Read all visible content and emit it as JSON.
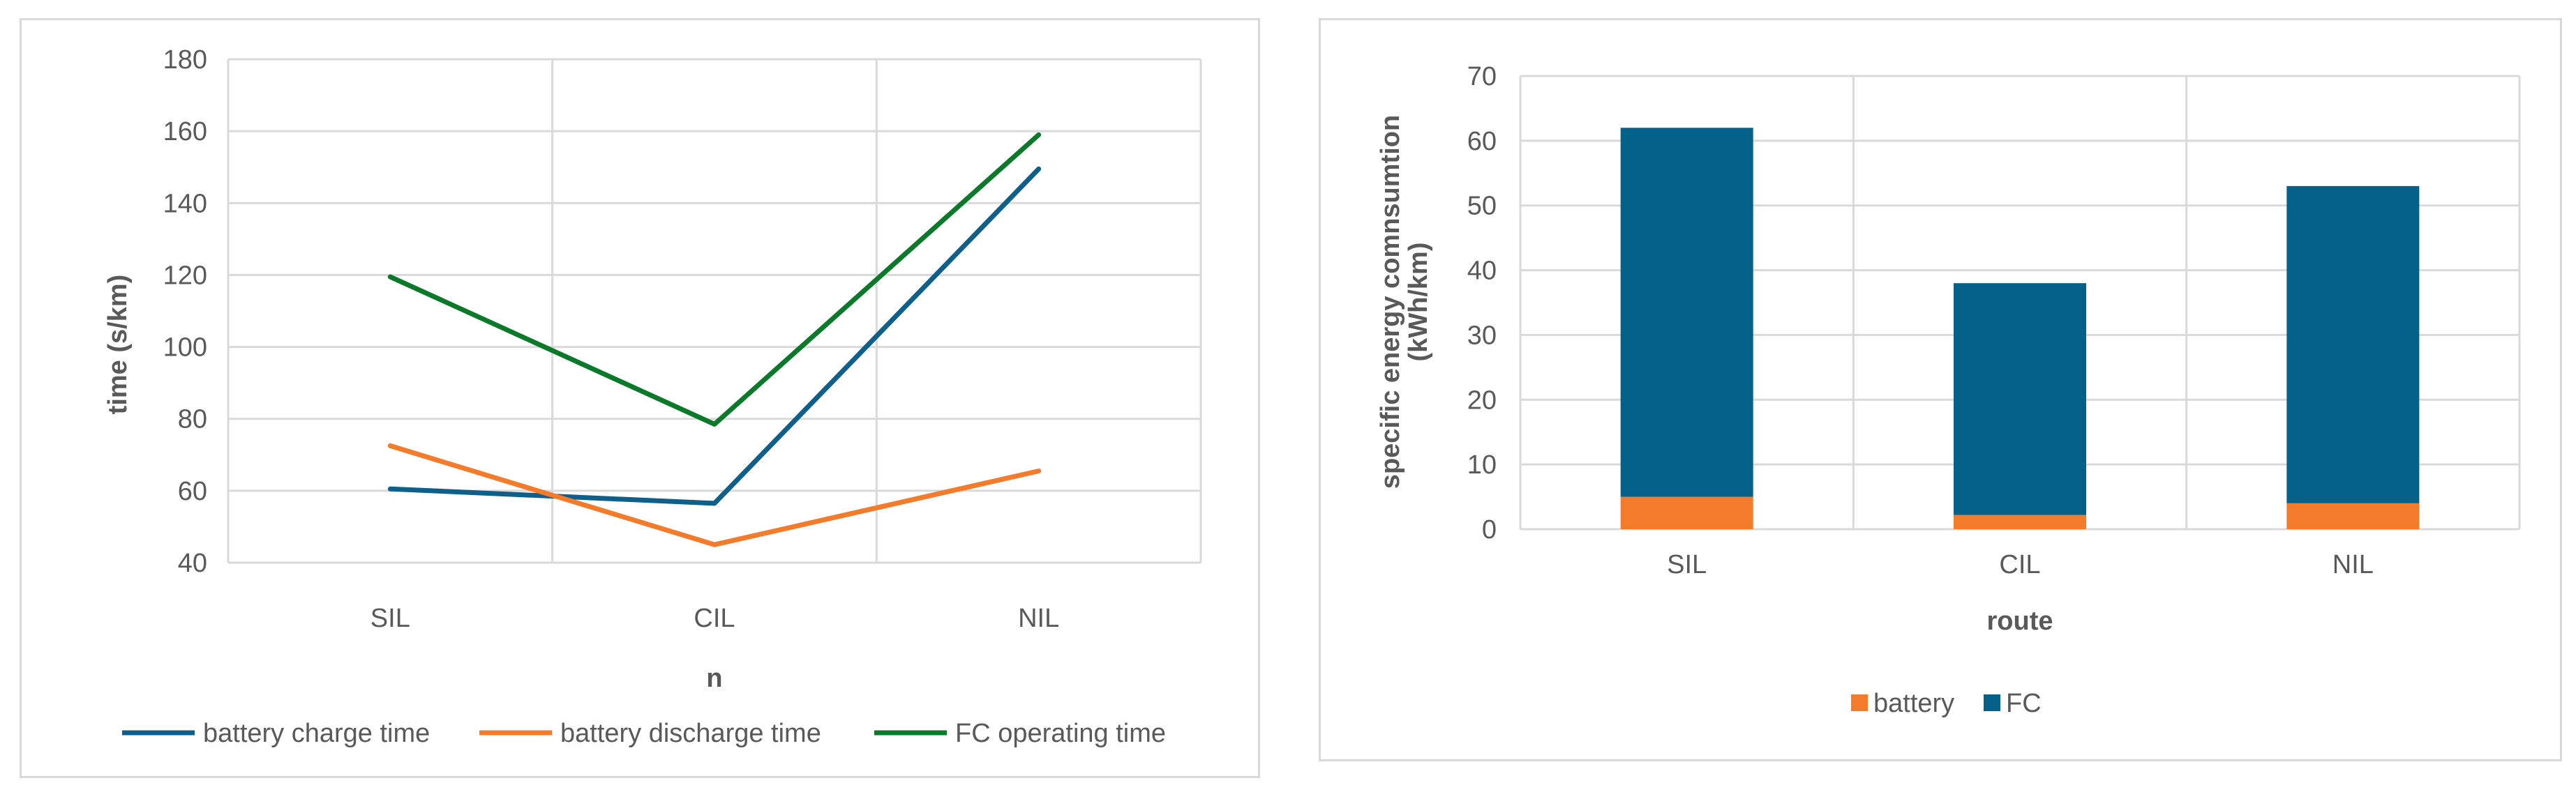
{
  "chart_data": [
    {
      "type": "line",
      "categories": [
        "SIL",
        "CIL",
        "NIL"
      ],
      "series": [
        {
          "name": "battery charge time",
          "color": "#0e5f8a",
          "values": [
            60.5,
            56.5,
            149.5
          ]
        },
        {
          "name": "battery discharge time",
          "color": "#f47b2a",
          "values": [
            72.5,
            45,
            65.5
          ]
        },
        {
          "name": "FC operating time",
          "color": "#0a7a2a",
          "values": [
            119.5,
            78.5,
            159
          ]
        }
      ],
      "xlabel": "n",
      "ylabel": "time (s/km)",
      "ylim": [
        40,
        180
      ],
      "yticks": [
        40,
        60,
        80,
        100,
        120,
        140,
        160,
        180
      ],
      "grid": true,
      "legend": "bottom"
    },
    {
      "type": "bar",
      "stacked": true,
      "categories": [
        "SIL",
        "CIL",
        "NIL"
      ],
      "series": [
        {
          "name": "battery",
          "color": "#f47b2a",
          "values": [
            5,
            2.2,
            4
          ]
        },
        {
          "name": "FC",
          "color": "#03618a",
          "values": [
            57,
            35.8,
            49
          ]
        }
      ],
      "xlabel": "route",
      "ylabel_lines": [
        "specific energy comnsumtion",
        "(kWh/km)"
      ],
      "ylim": [
        0,
        70
      ],
      "yticks": [
        0,
        10,
        20,
        30,
        40,
        50,
        60,
        70
      ],
      "grid": true,
      "legend": "bottom"
    }
  ]
}
